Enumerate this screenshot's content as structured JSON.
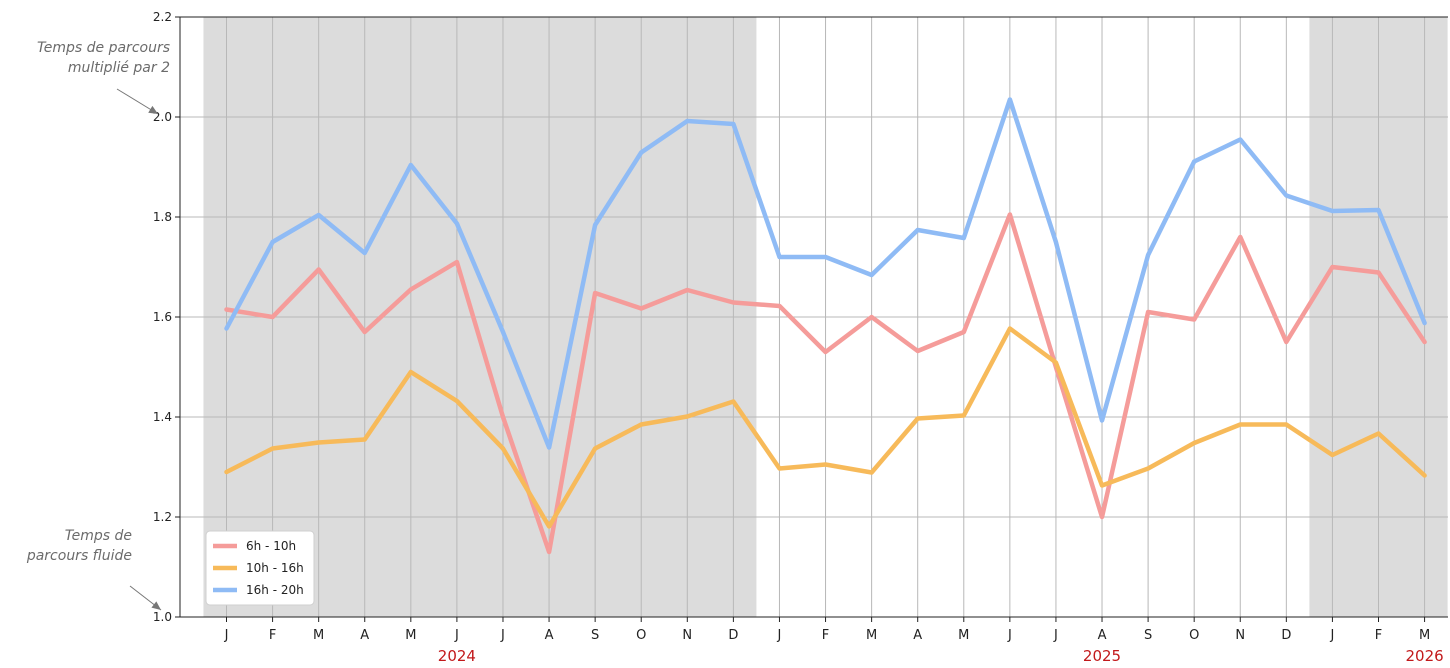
{
  "annotations": {
    "top": "Temps de parcours multiplié par 2",
    "bottom": "Temps de parcours fluide"
  },
  "chart_data": {
    "type": "line",
    "title": "",
    "xlabel": "",
    "ylabel": "",
    "ylim": [
      1.0,
      2.2
    ],
    "yticks": [
      "1.0",
      "1.2",
      "1.4",
      "1.6",
      "1.8",
      "2.0",
      "2.2"
    ],
    "categories": [
      "J",
      "F",
      "M",
      "A",
      "M",
      "J",
      "J",
      "A",
      "S",
      "O",
      "N",
      "D",
      "J",
      "F",
      "M",
      "A",
      "M",
      "J",
      "J",
      "A",
      "S",
      "O",
      "N",
      "D",
      "J",
      "F",
      "M"
    ],
    "years": [
      {
        "label": "2024",
        "index": 5
      },
      {
        "label": "2025",
        "index": 19
      },
      {
        "label": "2026",
        "index": 26
      }
    ],
    "shaded_ranges": [
      [
        0,
        11
      ],
      [
        24,
        26
      ]
    ],
    "grid": true,
    "legend_position": "lower-left",
    "series": [
      {
        "name": "6h - 10h",
        "color": "#f59c9a",
        "values": [
          1.615,
          1.6,
          1.695,
          1.57,
          1.655,
          1.71,
          1.4,
          1.13,
          1.648,
          1.617,
          1.654,
          1.629,
          1.622,
          1.53,
          1.6,
          1.532,
          1.57,
          1.805,
          1.5,
          1.2,
          1.61,
          1.595,
          1.76,
          1.55,
          1.7,
          1.689,
          1.55
        ]
      },
      {
        "name": "10h - 16h",
        "color": "#f7ba5a",
        "values": [
          1.29,
          1.337,
          1.349,
          1.355,
          1.49,
          1.432,
          1.337,
          1.181,
          1.337,
          1.385,
          1.401,
          1.431,
          1.297,
          1.305,
          1.289,
          1.397,
          1.403,
          1.577,
          1.509,
          1.263,
          1.297,
          1.348,
          1.385,
          1.385,
          1.324,
          1.367,
          1.283
        ]
      },
      {
        "name": "16h - 20h",
        "color": "#8fbbf5",
        "values": [
          1.577,
          1.75,
          1.804,
          1.728,
          1.904,
          1.787,
          1.57,
          1.339,
          1.784,
          1.929,
          1.992,
          1.986,
          1.72,
          1.72,
          1.684,
          1.774,
          1.758,
          2.035,
          1.75,
          1.393,
          1.724,
          1.911,
          1.955,
          1.843,
          1.812,
          1.814,
          1.588
        ]
      }
    ]
  }
}
